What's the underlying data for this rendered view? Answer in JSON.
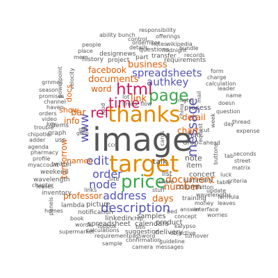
{
  "words": [
    {
      "text": "image",
      "color": "#555555"
    },
    {
      "text": "target",
      "color": "#e68a00"
    },
    {
      "text": "thanks",
      "color": "#e68a00"
    },
    {
      "text": "price",
      "color": "#3aa84a"
    },
    {
      "text": "page",
      "color": "#3aa84a"
    },
    {
      "text": "html",
      "color": "#d0185a"
    },
    {
      "text": "time",
      "color": "#d0185a"
    },
    {
      "text": "ref",
      "color": "#d0185a"
    },
    {
      "text": "description",
      "color": "#5353b8"
    },
    {
      "text": "address",
      "color": "#5353b8"
    },
    {
      "text": "message",
      "color": "#5353b8"
    },
    {
      "text": "spreadsheets",
      "color": "#5353b8"
    },
    {
      "text": "authkey",
      "color": "#5353b8"
    },
    {
      "text": "edit",
      "color": "#5353b8"
    },
    {
      "text": "order",
      "color": "#5353b8"
    },
    {
      "text": "node",
      "color": "#5353b8"
    },
    {
      "text": "www",
      "color": "#5353b8"
    },
    {
      "text": "document",
      "color": "#e05a00"
    },
    {
      "text": "documents",
      "color": "#e05a00"
    },
    {
      "text": "number",
      "color": "#e05a00"
    },
    {
      "text": "business",
      "color": "#e05a00"
    },
    {
      "text": "days",
      "color": "#e05a00"
    },
    {
      "text": "link",
      "color": "#e05a00"
    },
    {
      "text": "word",
      "color": "#e05a00"
    },
    {
      "text": "bar",
      "color": "#e05a00"
    },
    {
      "text": "facebook",
      "color": "#e05a00"
    },
    {
      "text": "professor",
      "color": "#e05a00"
    },
    {
      "text": "chart",
      "color": "#e05a00"
    },
    {
      "text": "detail",
      "color": "#e05a00"
    },
    {
      "text": "tomorrow",
      "color": "#e05a00"
    },
    {
      "text": "docs",
      "color": "#e05a00"
    },
    {
      "text": "info",
      "color": "#e05a00"
    },
    {
      "text": "show",
      "color": "#e05a00"
    },
    {
      "text": "names",
      "color": "#e05a00"
    },
    {
      "text": "talk",
      "color": "#555555"
    },
    {
      "text": "note",
      "color": "#555555"
    },
    {
      "text": "item",
      "color": "#555555"
    },
    {
      "text": "man",
      "color": "#555555"
    },
    {
      "text": "drop",
      "color": "#555555"
    },
    {
      "text": "list",
      "color": "#555555"
    },
    {
      "text": "process",
      "color": "#555555"
    },
    {
      "text": "picture",
      "color": "#555555"
    },
    {
      "text": "linkedin",
      "color": "#555555"
    },
    {
      "text": "samples",
      "color": "#555555"
    },
    {
      "text": "product",
      "color": "#555555"
    },
    {
      "text": "calendars",
      "color": "#555555"
    },
    {
      "text": "delivery",
      "color": "#555555"
    },
    {
      "text": "concert",
      "color": "#555555"
    },
    {
      "text": "column",
      "color": "#555555"
    },
    {
      "text": "summary",
      "color": "#555555"
    },
    {
      "text": "training",
      "color": "#555555"
    },
    {
      "text": "spreadsheet",
      "color": "#555555"
    },
    {
      "text": "suggestion",
      "color": "#555555"
    },
    {
      "text": "news",
      "color": "#555555"
    },
    {
      "text": "design",
      "color": "#555555"
    },
    {
      "text": "project",
      "color": "#555555"
    },
    {
      "text": "questions",
      "color": "#555555"
    },
    {
      "text": "requirements",
      "color": "#555555"
    },
    {
      "text": "transfer",
      "color": "#555555"
    },
    {
      "text": "part",
      "color": "#555555"
    },
    {
      "text": "history",
      "color": "#555555"
    },
    {
      "text": "items",
      "color": "#555555"
    },
    {
      "text": "graph",
      "color": "#555555"
    },
    {
      "text": "usc",
      "color": "#555555"
    },
    {
      "text": "twitter",
      "color": "#555555"
    },
    {
      "text": "lambda",
      "color": "#555555"
    },
    {
      "text": "inventory",
      "color": "#555555"
    },
    {
      "text": "weekend",
      "color": "#555555"
    },
    {
      "text": "wavelength",
      "color": "#555555"
    },
    {
      "text": "notification",
      "color": "#555555"
    },
    {
      "text": "requirementpassword",
      "color": "#555555"
    },
    {
      "text": "calculations",
      "color": "#555555"
    },
    {
      "text": "words",
      "color": "#555555"
    },
    {
      "text": "confirmation",
      "color": "#555555"
    },
    {
      "text": "guideline",
      "color": "#555555"
    },
    {
      "text": "sample",
      "color": "#555555"
    },
    {
      "text": "camera",
      "color": "#555555"
    },
    {
      "text": "messages",
      "color": "#555555"
    },
    {
      "text": "supermarket",
      "color": "#555555"
    },
    {
      "text": "kalypso",
      "color": "#555555"
    },
    {
      "text": "concept",
      "color": "#555555"
    },
    {
      "text": "objective",
      "color": "#555555"
    },
    {
      "text": "turnover",
      "color": "#555555"
    },
    {
      "text": "interface",
      "color": "#555555"
    },
    {
      "text": "money",
      "color": "#555555"
    },
    {
      "text": "answer",
      "color": "#555555"
    },
    {
      "text": "leaves",
      "color": "#555555"
    },
    {
      "text": "worries",
      "color": "#555555"
    },
    {
      "text": "table",
      "color": "#555555"
    },
    {
      "text": "update",
      "color": "#555555"
    },
    {
      "text": "formula",
      "color": "#555555"
    },
    {
      "text": "criteria",
      "color": "#555555"
    },
    {
      "text": "luck",
      "color": "#555555"
    },
    {
      "text": "matrix",
      "color": "#555555"
    },
    {
      "text": "street",
      "color": "#555555"
    },
    {
      "text": "seconds",
      "color": "#555555"
    },
    {
      "text": "expense",
      "color": "#555555"
    },
    {
      "text": "thread",
      "color": "#555555"
    },
    {
      "text": "question",
      "color": "#555555"
    },
    {
      "text": "doesn",
      "color": "#555555"
    },
    {
      "text": "calculation",
      "color": "#555555"
    },
    {
      "text": "leader",
      "color": "#555555"
    },
    {
      "text": "charge",
      "color": "#555555"
    },
    {
      "text": "form",
      "color": "#555555"
    },
    {
      "text": "name",
      "color": "#555555"
    },
    {
      "text": "records",
      "color": "#555555"
    },
    {
      "text": "bundle",
      "color": "#555555"
    },
    {
      "text": "offerings",
      "color": "#555555"
    },
    {
      "text": "responsibility",
      "color": "#555555"
    },
    {
      "text": "ability",
      "color": "#555555"
    },
    {
      "text": "bunch",
      "color": "#555555"
    },
    {
      "text": "control",
      "color": "#555555"
    },
    {
      "text": "orderfilter",
      "color": "#555555"
    },
    {
      "text": "notes",
      "color": "#555555"
    },
    {
      "text": "wikipedia",
      "color": "#555555"
    },
    {
      "text": "midnight",
      "color": "#555555"
    },
    {
      "text": "details",
      "color": "#555555"
    },
    {
      "text": "people",
      "color": "#555555"
    },
    {
      "text": "place",
      "color": "#555555"
    },
    {
      "text": "velocity",
      "color": "#555555"
    },
    {
      "text": "powerpoint",
      "color": "#555555"
    },
    {
      "text": "season",
      "color": "#555555"
    },
    {
      "text": "promises",
      "color": "#555555"
    },
    {
      "text": "channel",
      "color": "#555555"
    },
    {
      "text": "haven",
      "color": "#555555"
    },
    {
      "text": "orders",
      "color": "#555555"
    },
    {
      "text": "video",
      "color": "#555555"
    },
    {
      "text": "trouble",
      "color": "#555555"
    },
    {
      "text": "chipotle",
      "color": "#555555"
    },
    {
      "text": "agenda",
      "color": "#555555"
    },
    {
      "text": "profile",
      "color": "#555555"
    },
    {
      "text": "myaccount",
      "color": "#555555"
    },
    {
      "text": "leases",
      "color": "#555555"
    },
    {
      "text": "chapter",
      "color": "#555555"
    },
    {
      "text": "pharmacy",
      "color": "#555555"
    },
    {
      "text": "panels",
      "color": "#555555"
    },
    {
      "text": "homes",
      "color": "#555555"
    },
    {
      "text": "box",
      "color": "#555555"
    },
    {
      "text": "top",
      "color": "#555555"
    },
    {
      "text": "chip",
      "color": "#555555"
    },
    {
      "text": "bbs",
      "color": "#555555"
    },
    {
      "text": "links",
      "color": "#555555"
    },
    {
      "text": "share",
      "color": "#555555"
    },
    {
      "text": "stuff",
      "color": "#555555"
    },
    {
      "text": "bed",
      "color": "#555555"
    },
    {
      "text": "ccc",
      "color": "#555555"
    },
    {
      "text": "site",
      "color": "#555555"
    },
    {
      "text": "food",
      "color": "#555555"
    },
    {
      "text": "gift",
      "color": "#555555"
    },
    {
      "text": "limits",
      "color": "#555555"
    },
    {
      "text": "flow",
      "color": "#555555"
    },
    {
      "text": "lot",
      "color": "#555555"
    },
    {
      "text": "night",
      "color": "#555555"
    },
    {
      "text": "china",
      "color": "#555555"
    },
    {
      "text": "cards",
      "color": "#555555"
    },
    {
      "text": "ahead",
      "color": "#555555"
    },
    {
      "text": "cut",
      "color": "#555555"
    },
    {
      "text": "day",
      "color": "#555555"
    },
    {
      "text": "adder",
      "color": "#555555"
    },
    {
      "text": "grnmes",
      "color": "#555555"
    },
    {
      "text": "key",
      "color": "#555555"
    },
    {
      "text": "mem",
      "color": "#555555"
    },
    {
      "text": "wavelengths",
      "color": "#555555"
    },
    {
      "text": "request",
      "color": "#555555"
    },
    {
      "text": "week",
      "color": "#555555"
    },
    {
      "text": "mail",
      "color": "#555555"
    },
    {
      "text": "tab",
      "color": "#555555"
    },
    {
      "text": "button",
      "color": "#555555"
    },
    {
      "text": "book",
      "color": "#555555"
    },
    {
      "text": "buttons",
      "color": "#555555"
    },
    {
      "text": "gehp",
      "color": "#555555"
    }
  ]
}
